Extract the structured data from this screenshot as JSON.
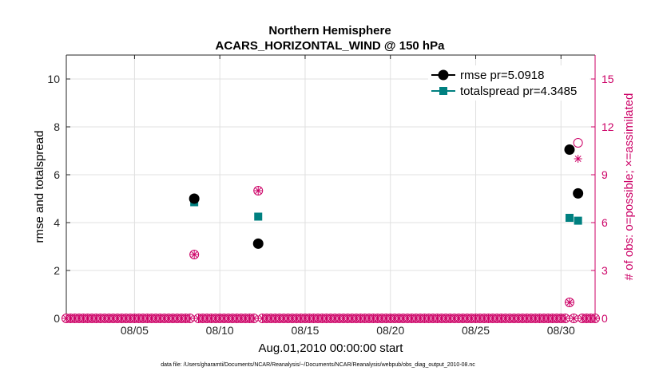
{
  "chart_data": {
    "type": "scatter",
    "title": "Northern Hemisphere",
    "subtitle": "ACARS_HORIZONTAL_WIND @ 150 hPa",
    "xlabel": "Aug.01,2010 00:00:00 start",
    "ylabel": "rmse and totalspread",
    "y2label": "# of obs: o=possible; ×=assimilated",
    "xlim": [
      1,
      32
    ],
    "ylim": [
      0,
      11
    ],
    "y2lim": [
      0,
      16.5
    ],
    "xticks": [
      5,
      10,
      15,
      20,
      25,
      30
    ],
    "xticklabels": [
      "08/05",
      "08/10",
      "08/15",
      "08/20",
      "08/25",
      "08/30"
    ],
    "yticks": [
      0,
      2,
      4,
      6,
      8,
      10
    ],
    "yticklabels": [
      "0",
      "2",
      "4",
      "6",
      "8",
      "10"
    ],
    "y2ticks": [
      0,
      3,
      6,
      9,
      12,
      15
    ],
    "y2ticklabels": [
      "0",
      "3",
      "6",
      "9",
      "12",
      "15"
    ],
    "grid": true,
    "legend_position": "top-right",
    "colors": {
      "rmse": "#000000",
      "totalspread": "#008080",
      "obs": "#cc0066"
    },
    "series": [
      {
        "name": "rmse pr=5.0918",
        "x": [
          8.5,
          12.25,
          30.5,
          31.0
        ],
        "y": [
          5.0,
          3.12,
          7.05,
          5.22
        ]
      },
      {
        "name": "totalspread pr=4.3485",
        "x": [
          8.5,
          12.25,
          30.5,
          31.0
        ],
        "y": [
          4.85,
          4.25,
          4.2,
          4.08
        ]
      }
    ],
    "obs_possible": {
      "x": [
        8.5,
        12.25,
        30.5,
        31.0
      ],
      "y": [
        4,
        8,
        1,
        11
      ]
    },
    "obs_assimilated": {
      "x": [
        8.5,
        12.25,
        30.5,
        31.0
      ],
      "y": [
        4,
        8,
        1,
        10
      ]
    },
    "zero_obs_spacing_days": 0.25
  },
  "footnote": "data file: /Users/gharamti/Documents/NCAR/Reanalysis/~/Documents/NCAR/Reanalysis/webpub/obs_diag_output_2010-08.nc"
}
